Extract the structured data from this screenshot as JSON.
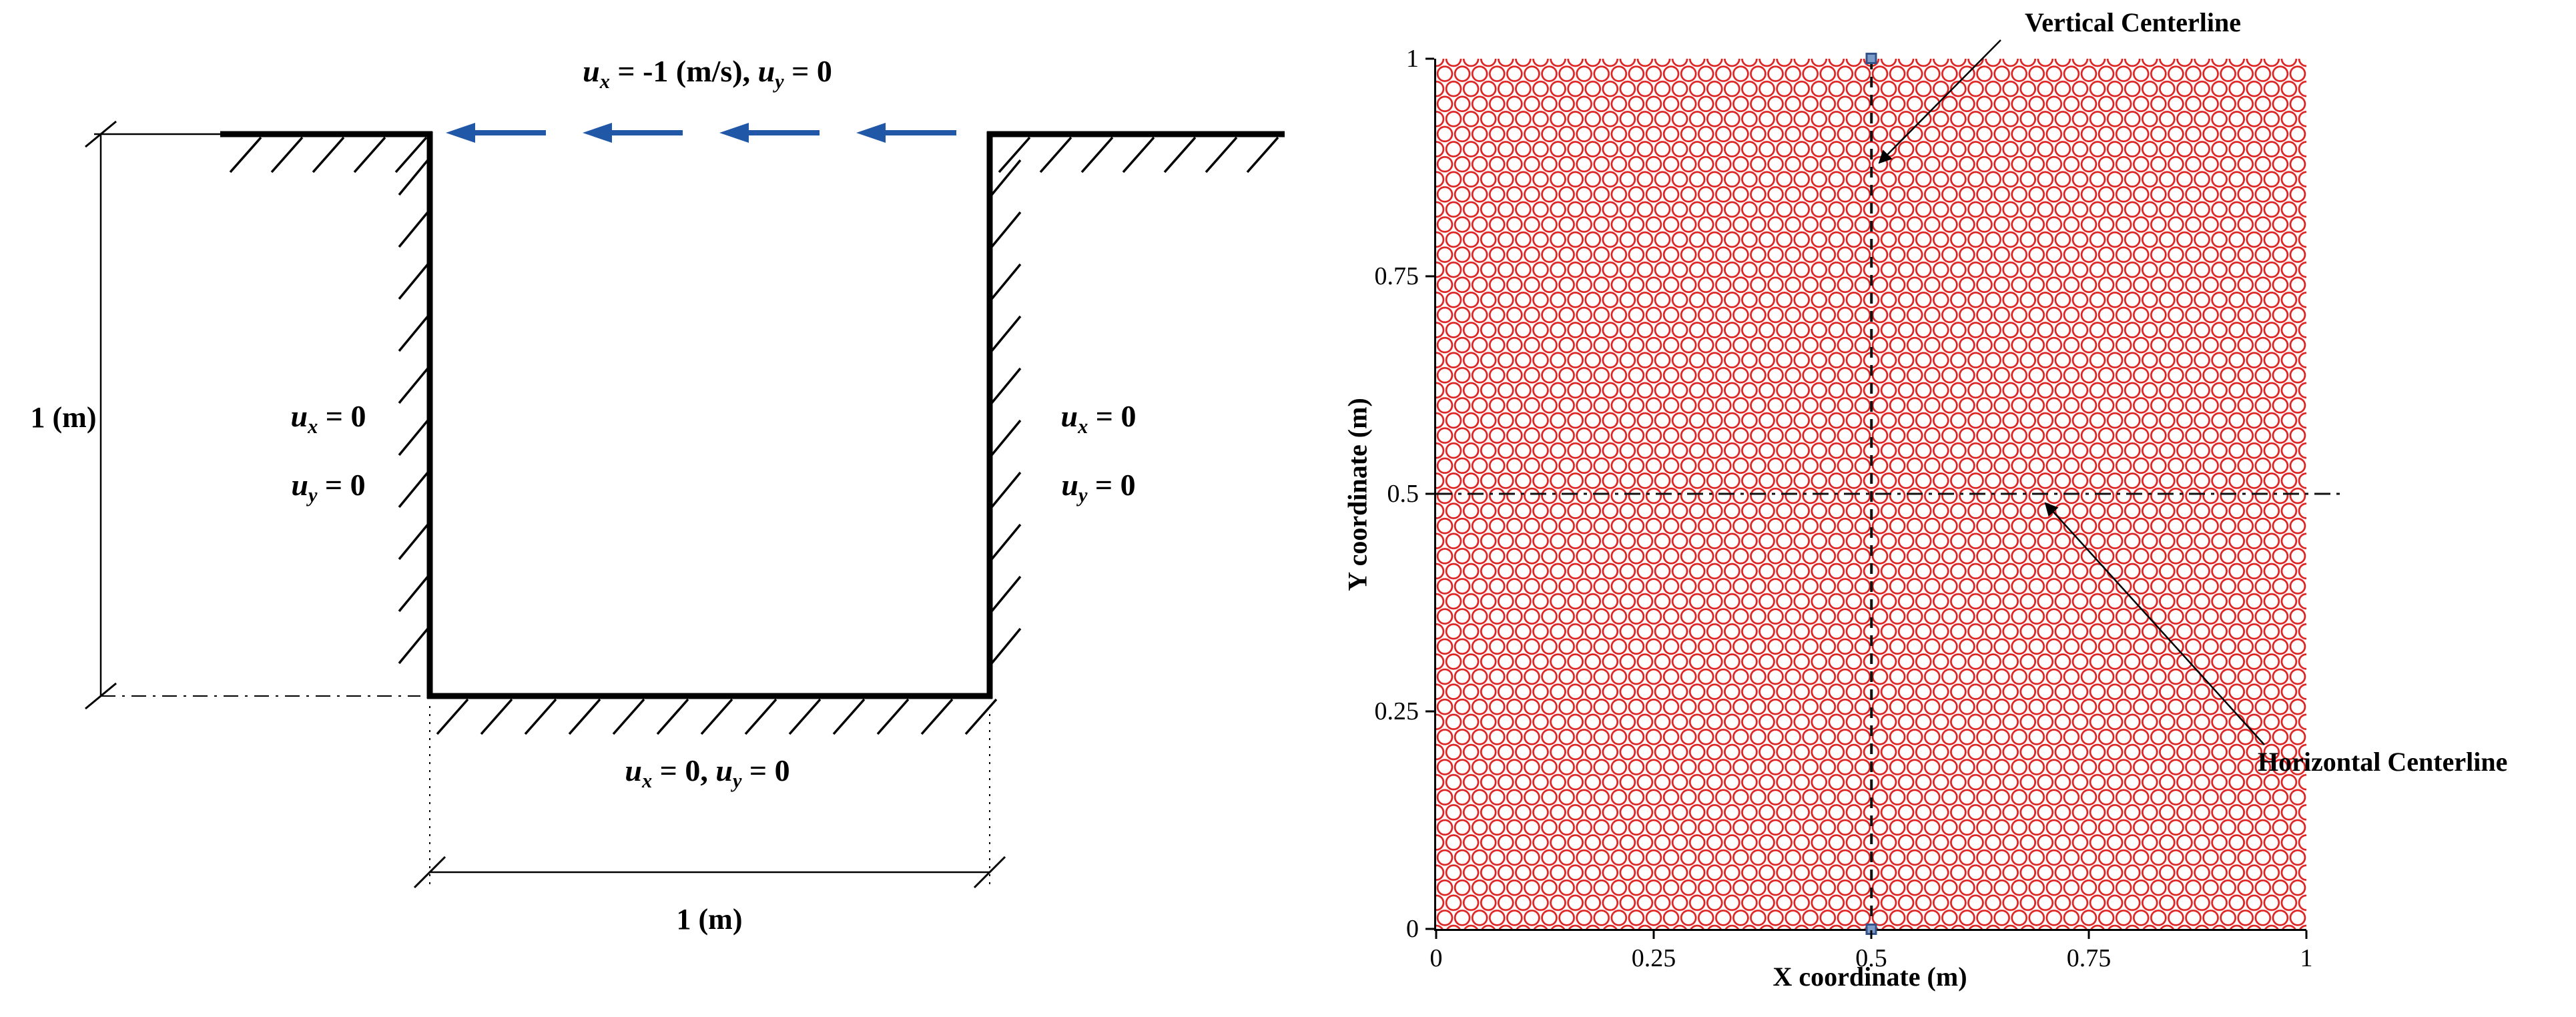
{
  "figure": {
    "left_diagram": {
      "top_bc": "ux = -1 (m/s), uy = 0",
      "left_bc_line1": "ux = 0",
      "left_bc_line2": "uy = 0",
      "right_bc_line1": "ux = 0",
      "right_bc_line2": "uy = 0",
      "bottom_bc": "ux = 0, uy = 0",
      "height_dim": "1 (m)",
      "width_dim": "1 (m)",
      "arrow_color": "#2057a7",
      "wall_color": "#000000"
    }
  },
  "chart_data": {
    "type": "scatter",
    "title": "",
    "xlabel": "X coordinate (m)",
    "ylabel": "Y coordinate (m)",
    "xlim": [
      0,
      1
    ],
    "ylim": [
      0,
      1
    ],
    "xticks": [
      0,
      0.25,
      0.5,
      0.75,
      1
    ],
    "xticklabels": [
      "0",
      "0.25",
      "0.5",
      "0.75",
      "1"
    ],
    "yticks": [
      0,
      0.25,
      0.5,
      0.75,
      1
    ],
    "yticklabels": [
      "0",
      "0.25",
      "0.5",
      "0.75",
      "1"
    ],
    "grid": false,
    "legend": null,
    "particles": {
      "description": "uniform hexagonal lattice of open circular particles filling the unit square domain",
      "marker": "open-circle",
      "color": "#dd2222",
      "columns": 50,
      "rows": 58,
      "domain": "unit square [0,1] x [0,1]"
    },
    "annotations": [
      {
        "text": "Vertical Centerline",
        "target_line": {
          "orientation": "vertical",
          "x": 0.5,
          "style": "dashed",
          "end_markers": "blue-square"
        }
      },
      {
        "text": "Horizontal Centerline",
        "target_line": {
          "orientation": "horizontal",
          "y": 0.5,
          "style": "dash-dot"
        }
      }
    ]
  }
}
